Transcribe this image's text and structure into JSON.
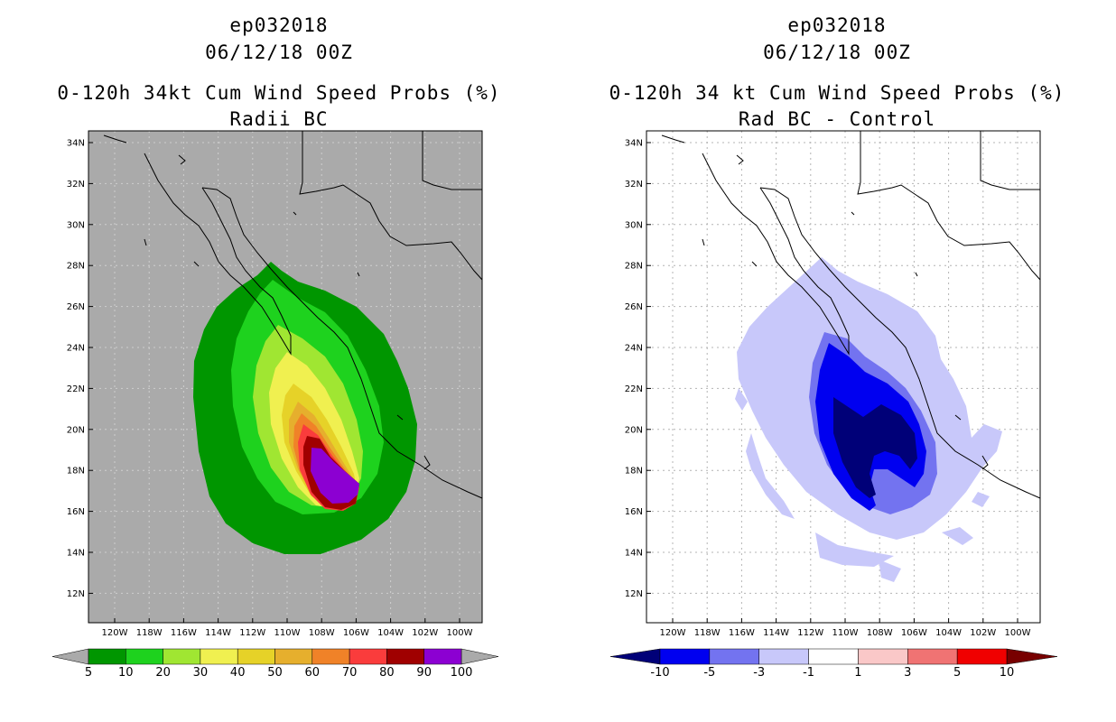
{
  "left": {
    "title": {
      "line1": "ep032018",
      "line2": "06/12/18 00Z",
      "line3": "0-120h 34kt Cum Wind Speed Probs (%)",
      "line4": "Radii BC"
    },
    "colorbar": {
      "labels": [
        "5",
        "10",
        "20",
        "30",
        "40",
        "50",
        "60",
        "70",
        "80",
        "90",
        "100"
      ],
      "colors": [
        "#009600",
        "#1ed21e",
        "#a0e632",
        "#f0f050",
        "#e6d228",
        "#e6af2d",
        "#f08228",
        "#fa3c3c",
        "#a00000",
        "#8c00d2"
      ],
      "end_colors": [
        "#aaaaaa",
        "#aaaaaa"
      ]
    }
  },
  "right": {
    "title": {
      "line1": "ep032018",
      "line2": "06/12/18 00Z",
      "line3": "0-120h 34 kt Cum Wind Speed Probs (%)",
      "line4": "Rad BC - Control"
    },
    "colorbar": {
      "labels": [
        "-10",
        "-5",
        "-3",
        "-1",
        "1",
        "3",
        "5",
        "10"
      ],
      "colors": [
        "#0000f0",
        "#7373f0",
        "#c8c8fa",
        "#ffffff",
        "#fac8c8",
        "#f07373",
        "#f00000"
      ],
      "end_colors": [
        "#000078",
        "#780000"
      ]
    }
  },
  "map": {
    "lon_labels": [
      "120W",
      "118W",
      "116W",
      "114W",
      "112W",
      "110W",
      "108W",
      "106W",
      "104W",
      "102W",
      "100W"
    ],
    "lat_labels": [
      "34N",
      "32N",
      "30N",
      "28N",
      "26N",
      "24N",
      "22N",
      "20N",
      "18N",
      "16N",
      "14N",
      "12N"
    ]
  }
}
